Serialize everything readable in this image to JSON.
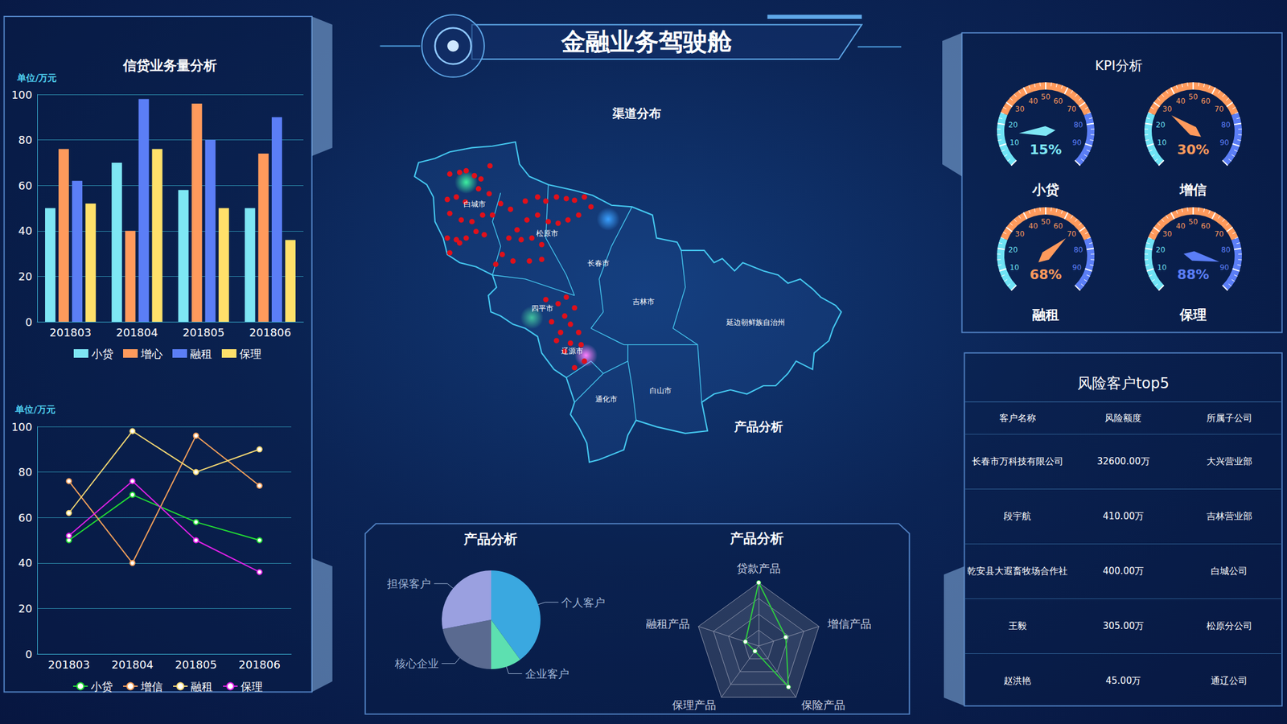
{
  "header": {
    "title": "金融业务驾驶舱"
  },
  "chart_data": [
    {
      "type": "bar",
      "title": "信贷业务量分析",
      "ylabel": "单位/万元",
      "categories": [
        "201803",
        "201804",
        "201805",
        "201806"
      ],
      "series": [
        {
          "name": "小贷",
          "color": "#7ee6f4",
          "values": [
            50,
            70,
            58,
            50
          ]
        },
        {
          "name": "增心",
          "color": "#ff9a5c",
          "values": [
            76,
            40,
            96,
            74
          ]
        },
        {
          "name": "融租",
          "color": "#5b7ef6",
          "values": [
            62,
            98,
            80,
            90
          ]
        },
        {
          "name": "保理",
          "color": "#ffe06a",
          "values": [
            52,
            76,
            50,
            36
          ]
        }
      ],
      "ylim": [
        0,
        100
      ],
      "yticks": [
        0,
        20,
        40,
        60,
        80,
        100
      ],
      "grid": true,
      "legend": "bottom"
    },
    {
      "type": "line",
      "ylabel": "单位/万元",
      "categories": [
        "201803",
        "201804",
        "201805",
        "201806"
      ],
      "series": [
        {
          "name": "小贷",
          "color": "#22dd33",
          "values": [
            50,
            70,
            58,
            50
          ]
        },
        {
          "name": "增信",
          "color": "#f5a05a",
          "values": [
            76,
            40,
            96,
            74
          ]
        },
        {
          "name": "融租",
          "color": "#f5d872",
          "values": [
            62,
            98,
            80,
            90
          ]
        },
        {
          "name": "保理",
          "color": "#e020e8",
          "values": [
            52,
            76,
            50,
            36
          ]
        }
      ],
      "ylim": [
        0,
        100
      ],
      "yticks": [
        0,
        20,
        40,
        60,
        80,
        100
      ],
      "grid": true,
      "legend": "bottom",
      "marker": "emptyCircle"
    },
    {
      "type": "gauge",
      "title": "KPI分析",
      "ylim": [
        0,
        100
      ],
      "yticks": [
        10,
        20,
        30,
        40,
        50,
        60,
        70,
        80,
        90
      ],
      "series": [
        {
          "name": "小贷",
          "values": [
            15
          ],
          "value_labels": [
            "15%"
          ],
          "color": "#7ee6f4"
        },
        {
          "name": "增信",
          "values": [
            30
          ],
          "value_labels": [
            "30%"
          ],
          "color": "#ff9a5c"
        },
        {
          "name": "融租",
          "values": [
            68
          ],
          "value_labels": [
            "68%"
          ],
          "color": "#ff9a5c"
        },
        {
          "name": "保理",
          "values": [
            88
          ],
          "value_labels": [
            "88%"
          ],
          "color": "#5b7ef6"
        }
      ]
    },
    {
      "type": "pie",
      "title": "产品分析",
      "categories": [
        "个人客户",
        "企业客户",
        "核心企业",
        "担保客户"
      ],
      "values": [
        40,
        10,
        22,
        28
      ],
      "colors": [
        "#3aa8e0",
        "#5de0b0",
        "#5a6a90",
        "#9aa0e0"
      ]
    },
    {
      "type": "radar",
      "title": "产品分析",
      "categories": [
        "贷款产品",
        "融租产品",
        "保理产品",
        "保险产品",
        "增信产品"
      ],
      "ylim": [
        0,
        100
      ],
      "values": [
        100,
        22,
        10,
        80,
        45
      ],
      "color": "#2ecc40"
    }
  ],
  "map": {
    "title": "渠道分布",
    "labels": [
      "白城市",
      "松原市",
      "长春市",
      "吉林市",
      "延边朝鲜族自治州",
      "四平市",
      "辽源市",
      "通化市",
      "白山市"
    ],
    "overlay_label": "产品分析"
  },
  "table": {
    "title": "风险客户top5",
    "header": [
      "客户名称",
      "风险额度",
      "所属子公司"
    ],
    "rows": [
      [
        "长春市万科技有限公司",
        "32600.00万",
        "大兴营业部"
      ],
      [
        "段宇航",
        "410.00万",
        "吉林营业部"
      ],
      [
        "乾安县大遐畜牧场合作社",
        "400.00万",
        "白城公司"
      ],
      [
        "王毅",
        "305.00万",
        "松原分公司"
      ],
      [
        "赵洪艳",
        "45.00万",
        "通辽公司"
      ]
    ]
  }
}
